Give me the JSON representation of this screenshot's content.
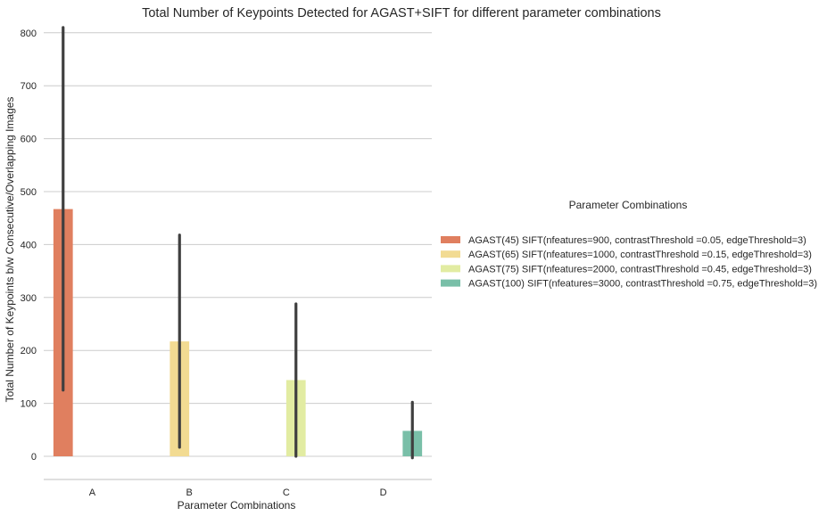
{
  "chart_data": {
    "type": "bar",
    "title": "Total Number of Keypoints Detected for AGAST+SIFT for different parameter combinations",
    "xlabel": "Parameter Combinations",
    "ylabel": "Total Number of Keypoints b/w Consecutive/Overlapping Images",
    "categories": [
      "A",
      "B",
      "C",
      "D"
    ],
    "ylim": [
      -45,
      815
    ],
    "yticks": [
      0,
      100,
      200,
      300,
      400,
      500,
      600,
      700,
      800
    ],
    "grid": "horizontal",
    "legend_title": "Parameter Combinations",
    "legend_placement": "center-right",
    "series": [
      {
        "name": "AGAST(45) SIFT(nfeatures=900, contrastThreshold =0.05, edgeThreshold=3)",
        "color": "#e07f5f",
        "values": [
          467,
          0,
          0,
          0
        ],
        "ci": [
          [
            125,
            810
          ],
          null,
          null,
          null
        ]
      },
      {
        "name": "AGAST(65) SIFT(nfeatures=1000, contrastThreshold =0.15, edgeThreshold=3)",
        "color": "#f2db92",
        "values": [
          0,
          217,
          0,
          0
        ],
        "ci": [
          null,
          [
            17,
            418
          ],
          null,
          null
        ]
      },
      {
        "name": "AGAST(75) SIFT(nfeatures=2000, contrastThreshold =0.45, edgeThreshold=3)",
        "color": "#e2eca2",
        "values": [
          0,
          0,
          144,
          0
        ],
        "ci": [
          null,
          null,
          [
            0,
            288
          ],
          null
        ]
      },
      {
        "name": "AGAST(100) SIFT(nfeatures=3000, contrastThreshold =0.75, edgeThreshold=3)",
        "color": "#79bfa8",
        "values": [
          0,
          0,
          0,
          48
        ],
        "ci": [
          null,
          null,
          null,
          [
            -3,
            102
          ]
        ]
      }
    ]
  }
}
